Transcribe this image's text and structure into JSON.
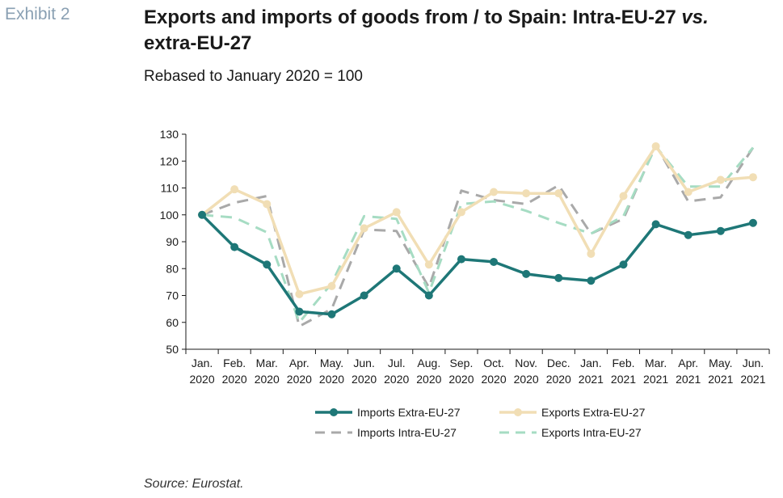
{
  "exhibit_label": "Exhibit 2",
  "title_main": "Exports and imports of goods from / to Spain: Intra-EU-27 ",
  "title_vs": "vs.",
  "title_end": "extra-EU-27",
  "subtitle": "Rebased to January 2020 = 100",
  "source": "Source: Eurostat.",
  "chart_data": {
    "type": "line",
    "categories": [
      [
        "Jan.",
        "2020"
      ],
      [
        "Feb.",
        "2020"
      ],
      [
        "Mar.",
        "2020"
      ],
      [
        "Apr.",
        "2020"
      ],
      [
        "May.",
        "2020"
      ],
      [
        "Jun.",
        "2020"
      ],
      [
        "Jul.",
        "2020"
      ],
      [
        "Aug.",
        "2020"
      ],
      [
        "Sep.",
        "2020"
      ],
      [
        "Oct.",
        "2020"
      ],
      [
        "Nov.",
        "2020"
      ],
      [
        "Dec.",
        "2020"
      ],
      [
        "Jan.",
        "2021"
      ],
      [
        "Feb.",
        "2021"
      ],
      [
        "Mar.",
        "2021"
      ],
      [
        "Apr.",
        "2021"
      ],
      [
        "May.",
        "2021"
      ],
      [
        "Jun.",
        "2021"
      ]
    ],
    "ylim": [
      50,
      130
    ],
    "yticks": [
      50,
      60,
      70,
      80,
      90,
      100,
      110,
      120,
      130
    ],
    "grid": false,
    "legend_position": "bottom",
    "series": [
      {
        "name": "Imports Extra-EU-27",
        "color": "#1e7777",
        "dash": "solid",
        "markers": true,
        "values": [
          100,
          88,
          81.5,
          64,
          63,
          70,
          80,
          70,
          83.5,
          82.5,
          78,
          76.5,
          75.5,
          81.5,
          96.5,
          92.5,
          94,
          97
        ]
      },
      {
        "name": "Exports Extra-EU-27",
        "color": "#f1deb5",
        "dash": "solid",
        "markers": true,
        "values": [
          100,
          109.5,
          104,
          70.5,
          73.5,
          95,
          101,
          81.5,
          101,
          108.5,
          108,
          108,
          85.5,
          107,
          125.5,
          108.5,
          113,
          114
        ]
      },
      {
        "name": "Imports Intra-EU-27",
        "color": "#a9a9a9",
        "dash": "dashed",
        "markers": false,
        "values": [
          100,
          104.5,
          107,
          58.5,
          65,
          94.5,
          94,
          73,
          109,
          105.5,
          104,
          111,
          93,
          98.5,
          126,
          105,
          106.5,
          125
        ]
      },
      {
        "name": "Exports Intra-EU-27",
        "color": "#a6dcc3",
        "dash": "dashed",
        "markers": false,
        "values": [
          100,
          99,
          93.5,
          60,
          74.5,
          99.5,
          98.5,
          71,
          104,
          105,
          101.5,
          97,
          93,
          99.5,
          125.5,
          110.5,
          110.5,
          125
        ]
      }
    ]
  }
}
